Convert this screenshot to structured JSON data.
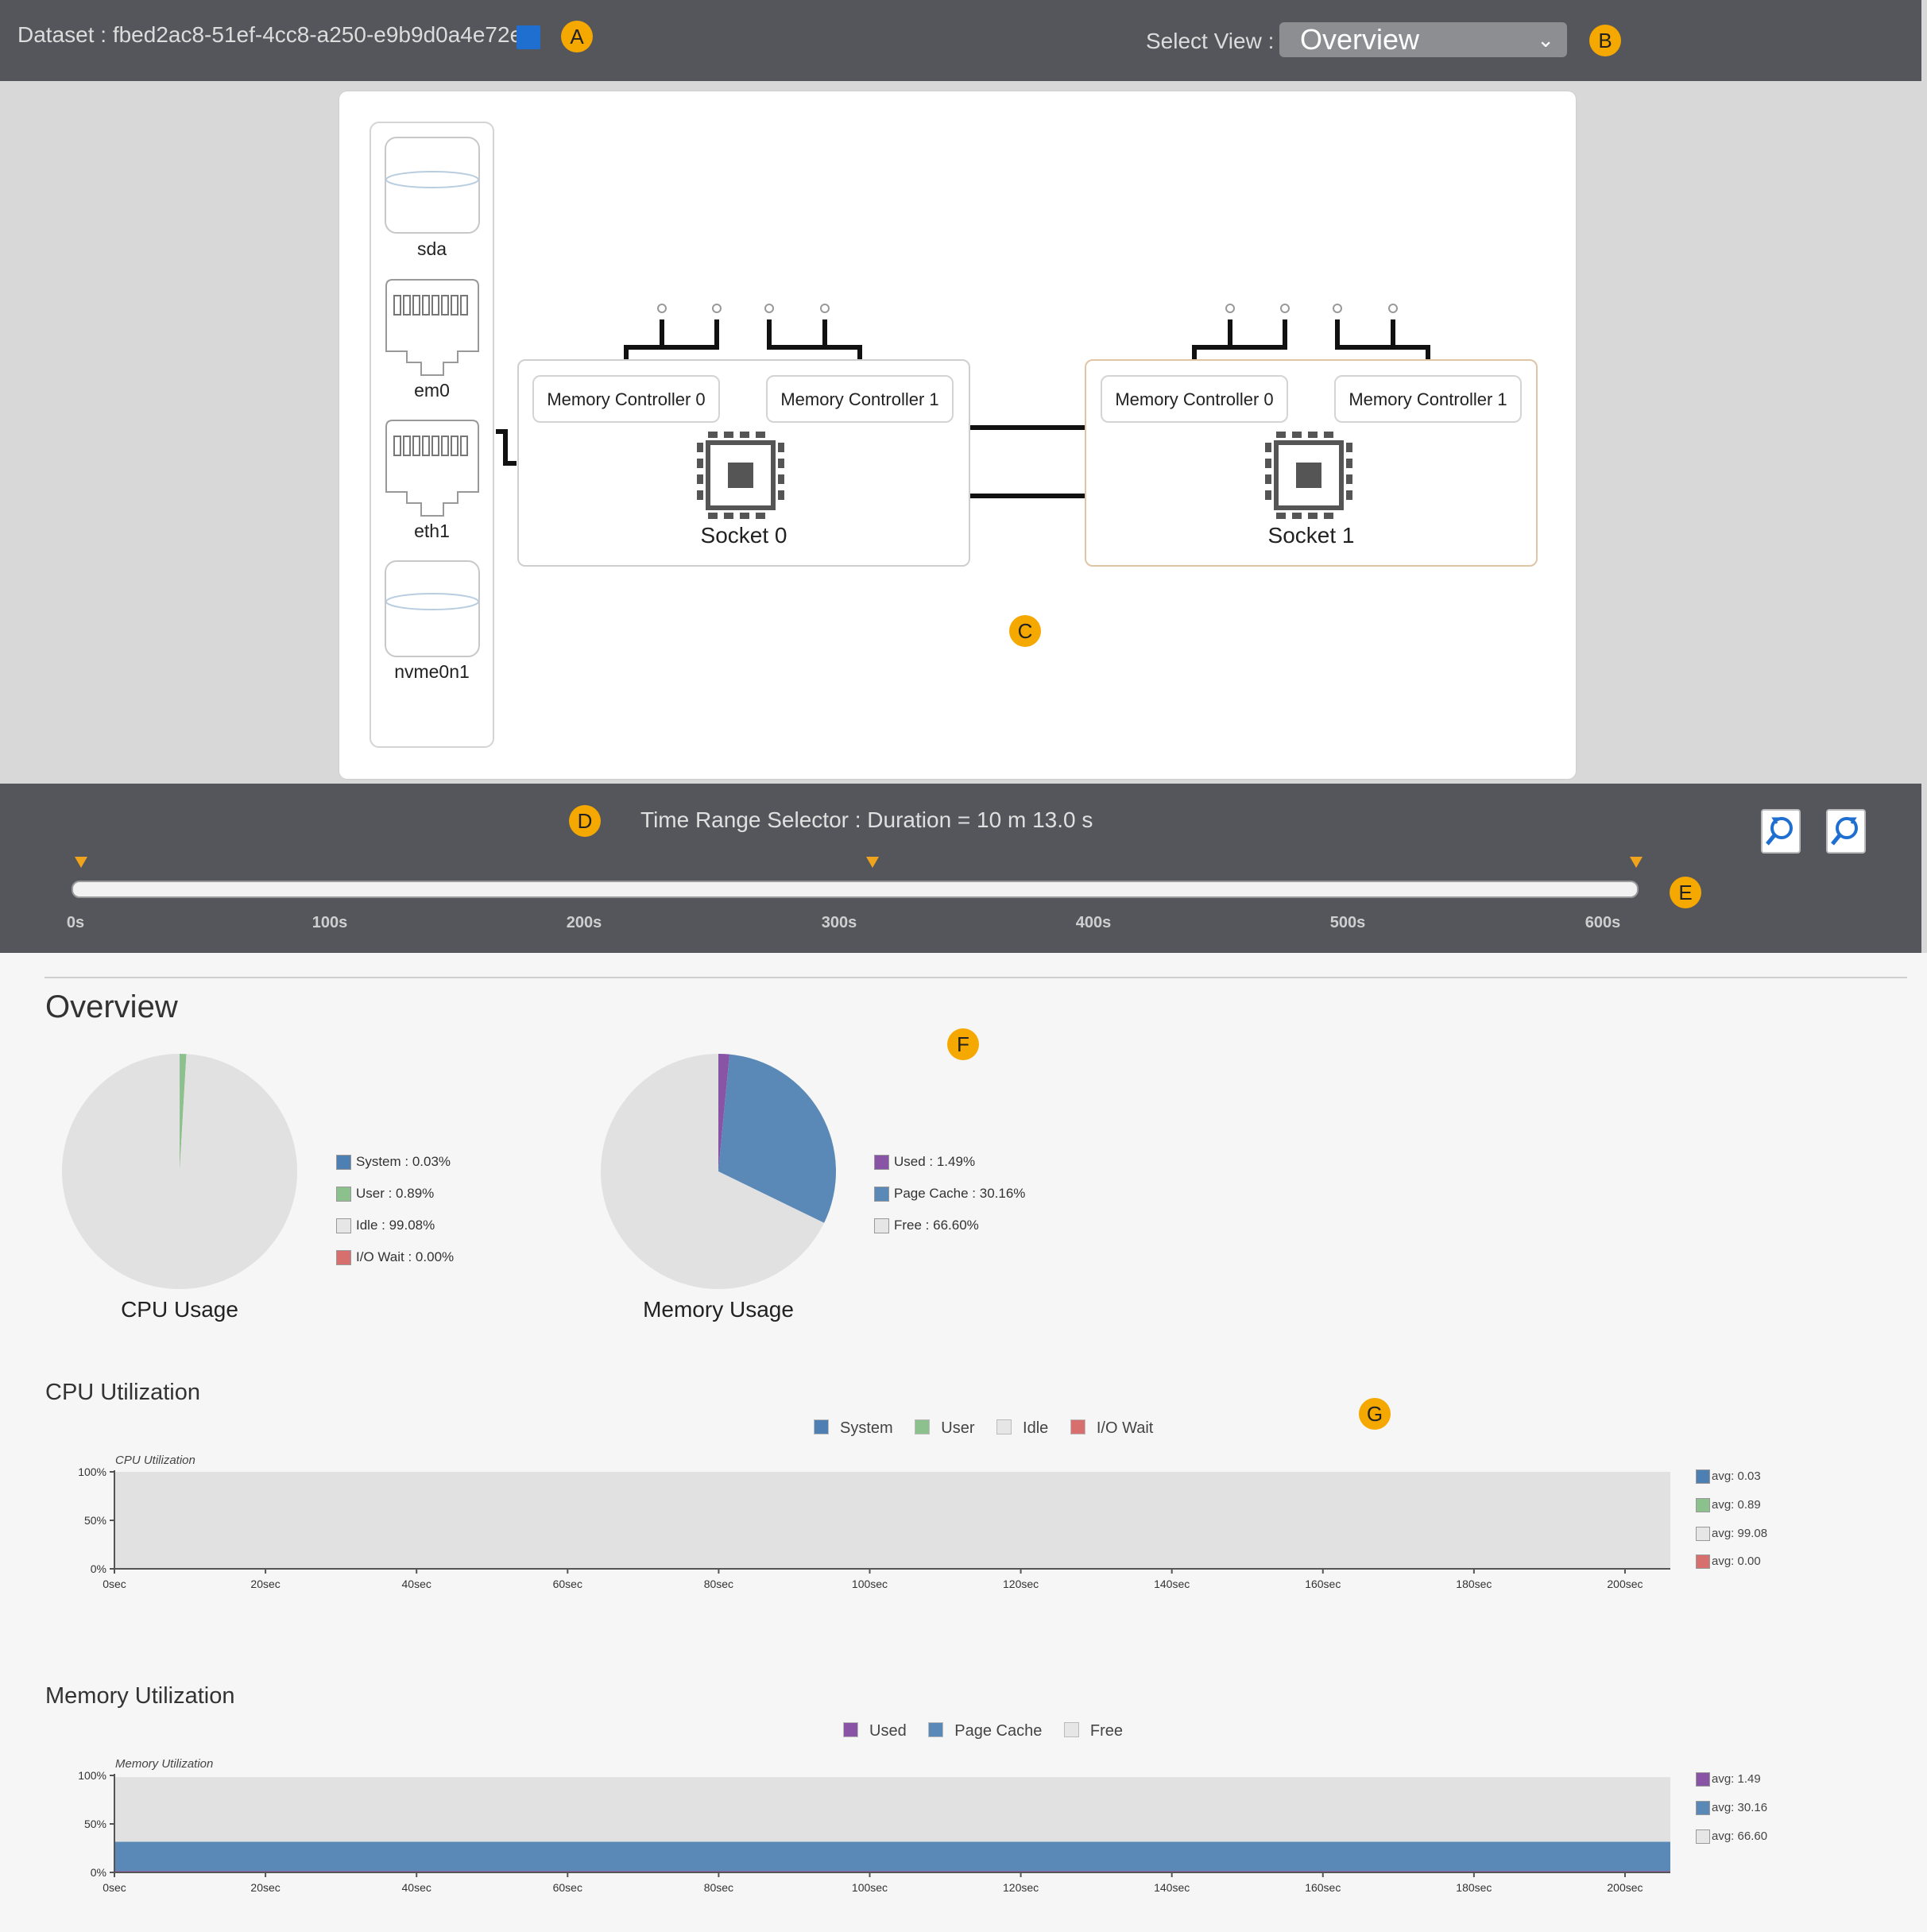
{
  "header": {
    "dataset_label": "Dataset : fbed2ac8-51ef-4cc8-a250-e9b9d0a4e72e",
    "select_view_label": "Select View :",
    "select_view_value": "Overview"
  },
  "markers": [
    "A",
    "B",
    "C",
    "D",
    "E",
    "F",
    "G"
  ],
  "devices": [
    "sda",
    "em0",
    "eth1",
    "nvme0n1"
  ],
  "sockets": [
    {
      "label": "Socket 0",
      "controllers": [
        "Memory Controller 0",
        "Memory Controller 1"
      ]
    },
    {
      "label": "Socket 1",
      "controllers": [
        "Memory Controller 0",
        "Memory Controller 1"
      ]
    }
  ],
  "time_range": {
    "title": "Time Range Selector : Duration = 10 m 13.0 s",
    "ticks": [
      "0s",
      "100s",
      "200s",
      "300s",
      "400s",
      "500s",
      "600s"
    ]
  },
  "overview": {
    "title": "Overview",
    "cpu_usage_title": "CPU Usage",
    "memory_usage_title": "Memory Usage",
    "cpu_legend": [
      "System : 0.03%",
      "User : 0.89%",
      "Idle : 99.08%",
      "I/O Wait : 0.00%"
    ],
    "memory_legend": [
      "Used : 1.49%",
      "Page Cache : 30.16%",
      "Free : 66.60%"
    ]
  },
  "cpu_utilization": {
    "section_title": "CPU Utilization",
    "legend": [
      "System",
      "User",
      "Idle",
      "I/O Wait"
    ],
    "inner_title": "CPU Utilization",
    "averages": [
      "avg: 0.03",
      "avg: 0.89",
      "avg: 99.08",
      "avg: 0.00"
    ]
  },
  "memory_utilization": {
    "section_title": "Memory Utilization",
    "legend": [
      "Used",
      "Page Cache",
      "Free"
    ],
    "inner_title": "Memory Utilization",
    "averages": [
      "avg: 1.49",
      "avg: 30.16",
      "avg: 66.60"
    ]
  },
  "colors": {
    "system": "#4e7fb3",
    "user": "#8cc08c",
    "idle": "#e1e1e1",
    "io_wait": "#d86f6f",
    "used": "#8a54a6",
    "page_cache": "#5a89b8",
    "free": "#e1e1e1",
    "marker": "#f5a800"
  },
  "chart_data": [
    {
      "type": "pie",
      "title": "CPU Usage",
      "categories": [
        "System",
        "User",
        "Idle",
        "I/O Wait"
      ],
      "values": [
        0.03,
        0.89,
        99.08,
        0.0
      ]
    },
    {
      "type": "pie",
      "title": "Memory Usage",
      "categories": [
        "Used",
        "Page Cache",
        "Free"
      ],
      "values": [
        1.49,
        30.16,
        66.6
      ]
    },
    {
      "type": "area",
      "title": "CPU Utilization",
      "x": [
        "0sec",
        "20sec",
        "40sec",
        "60sec",
        "80sec",
        "100sec",
        "120sec",
        "140sec",
        "160sec",
        "180sec",
        "200sec"
      ],
      "y_ticks": [
        "0%",
        "50%",
        "100%"
      ],
      "ylim": [
        0,
        100
      ],
      "xlim": [
        0,
        206
      ],
      "series": [
        {
          "name": "System",
          "values": [
            0.03,
            0.03,
            0.03,
            0.03,
            0.03,
            0.03,
            0.03,
            0.03,
            0.03,
            0.03,
            0.03
          ]
        },
        {
          "name": "User",
          "values": [
            0.89,
            0.89,
            0.89,
            0.89,
            0.89,
            0.89,
            0.89,
            0.89,
            0.89,
            0.89,
            0.89
          ]
        },
        {
          "name": "Idle",
          "values": [
            99.08,
            99.08,
            99.08,
            99.08,
            99.08,
            99.08,
            99.08,
            99.08,
            99.08,
            99.08,
            99.08
          ]
        },
        {
          "name": "I/O Wait",
          "values": [
            0,
            0,
            0,
            0,
            0,
            0,
            0,
            0,
            0,
            0,
            0
          ]
        }
      ]
    },
    {
      "type": "area",
      "title": "Memory Utilization",
      "x": [
        "0sec",
        "20sec",
        "40sec",
        "60sec",
        "80sec",
        "100sec",
        "120sec",
        "140sec",
        "160sec",
        "180sec",
        "200sec"
      ],
      "y_ticks": [
        "0%",
        "50%",
        "100%"
      ],
      "ylim": [
        0,
        100
      ],
      "xlim": [
        0,
        206
      ],
      "series": [
        {
          "name": "Used",
          "values": [
            1.49,
            1.49,
            1.49,
            1.49,
            1.49,
            1.49,
            1.49,
            1.49,
            1.49,
            1.49,
            1.49
          ]
        },
        {
          "name": "Page Cache",
          "values": [
            30.16,
            30.16,
            30.16,
            30.16,
            30.16,
            30.16,
            30.16,
            30.16,
            30.16,
            30.16,
            30.16
          ]
        },
        {
          "name": "Free",
          "values": [
            66.6,
            66.6,
            66.6,
            66.6,
            66.6,
            66.6,
            66.6,
            66.6,
            66.6,
            66.6,
            66.6
          ]
        }
      ]
    }
  ]
}
